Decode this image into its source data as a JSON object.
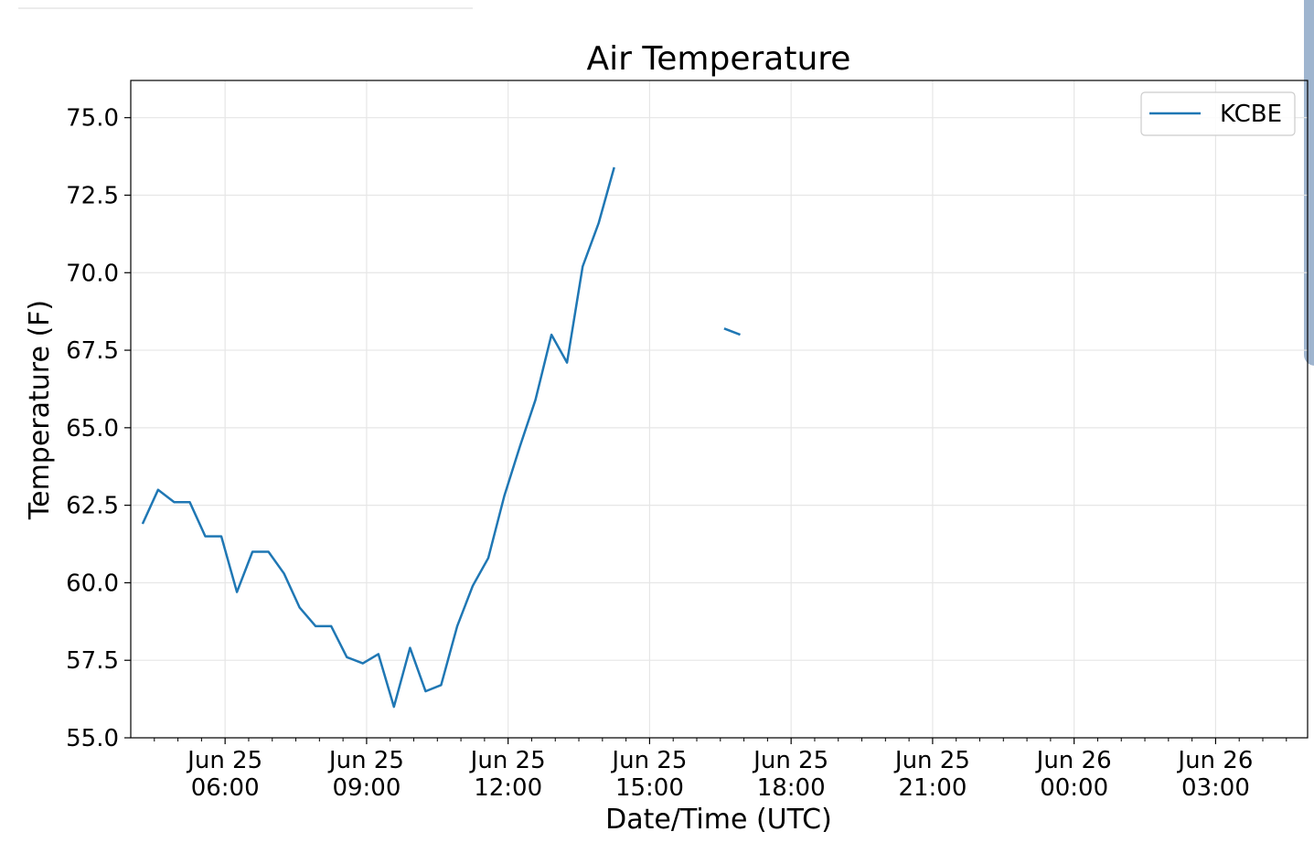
{
  "chart_data": {
    "type": "line",
    "title": "Air Temperature",
    "xlabel": "Date/Time (UTC)",
    "ylabel": "Temperature (F)",
    "xlim_hours": [
      4.0,
      28.95
    ],
    "ylim": [
      55.0,
      76.2
    ],
    "y_ticks": [
      55.0,
      57.5,
      60.0,
      62.5,
      65.0,
      67.5,
      70.0,
      72.5,
      75.0
    ],
    "y_tick_labels": [
      "55.0",
      "57.5",
      "60.0",
      "62.5",
      "65.0",
      "67.5",
      "70.0",
      "72.5",
      "75.0"
    ],
    "x_ticks": [
      {
        "hours": 6,
        "date": "Jun 25",
        "time": "06:00"
      },
      {
        "hours": 9,
        "date": "Jun 25",
        "time": "09:00"
      },
      {
        "hours": 12,
        "date": "Jun 25",
        "time": "12:00"
      },
      {
        "hours": 15,
        "date": "Jun 25",
        "time": "15:00"
      },
      {
        "hours": 18,
        "date": "Jun 25",
        "time": "18:00"
      },
      {
        "hours": 21,
        "date": "Jun 25",
        "time": "21:00"
      },
      {
        "hours": 24,
        "date": "Jun 26",
        "time": "00:00"
      },
      {
        "hours": 27,
        "date": "Jun 26",
        "time": "03:00"
      }
    ],
    "x_minor_ticks_hours": [
      4.5,
      5.0,
      5.5,
      6.5,
      7.0,
      7.5,
      8.0,
      8.5,
      9.5,
      10.0,
      10.5,
      11.0,
      11.5,
      12.5,
      13.0,
      13.5,
      14.0,
      14.5,
      15.5,
      16.0,
      16.5,
      17.0,
      17.5,
      18.5,
      19.0,
      19.5,
      20.0,
      20.5,
      21.5,
      22.0,
      22.5,
      23.0,
      23.5,
      24.5,
      25.0,
      25.5,
      26.0,
      26.5,
      27.5,
      28.0,
      28.5
    ],
    "grid": true,
    "legend_position": "top-right",
    "series": [
      {
        "name": "KCBE",
        "color": "#1f77b4",
        "segments": [
          [
            [
              4.25,
              61.9
            ],
            [
              4.58,
              63.0
            ],
            [
              4.92,
              62.6
            ],
            [
              5.25,
              62.6
            ],
            [
              5.58,
              61.5
            ],
            [
              5.92,
              61.5
            ],
            [
              6.25,
              59.7
            ],
            [
              6.58,
              61.0
            ],
            [
              6.92,
              61.0
            ],
            [
              7.25,
              60.3
            ],
            [
              7.58,
              59.2
            ],
            [
              7.92,
              58.6
            ],
            [
              8.25,
              58.6
            ],
            [
              8.58,
              57.6
            ],
            [
              8.92,
              57.4
            ],
            [
              9.25,
              57.7
            ],
            [
              9.58,
              56.0
            ],
            [
              9.92,
              57.9
            ],
            [
              10.25,
              56.5
            ],
            [
              10.58,
              56.7
            ],
            [
              10.92,
              58.6
            ],
            [
              11.25,
              59.9
            ],
            [
              11.58,
              60.8
            ],
            [
              11.92,
              62.8
            ],
            [
              12.25,
              64.4
            ],
            [
              12.58,
              65.9
            ],
            [
              12.92,
              68.0
            ],
            [
              13.25,
              67.1
            ],
            [
              13.58,
              70.2
            ],
            [
              13.92,
              71.6
            ],
            [
              14.25,
              73.4
            ]
          ],
          [
            [
              16.58,
              68.2
            ],
            [
              16.92,
              68.0
            ]
          ]
        ]
      }
    ]
  }
}
